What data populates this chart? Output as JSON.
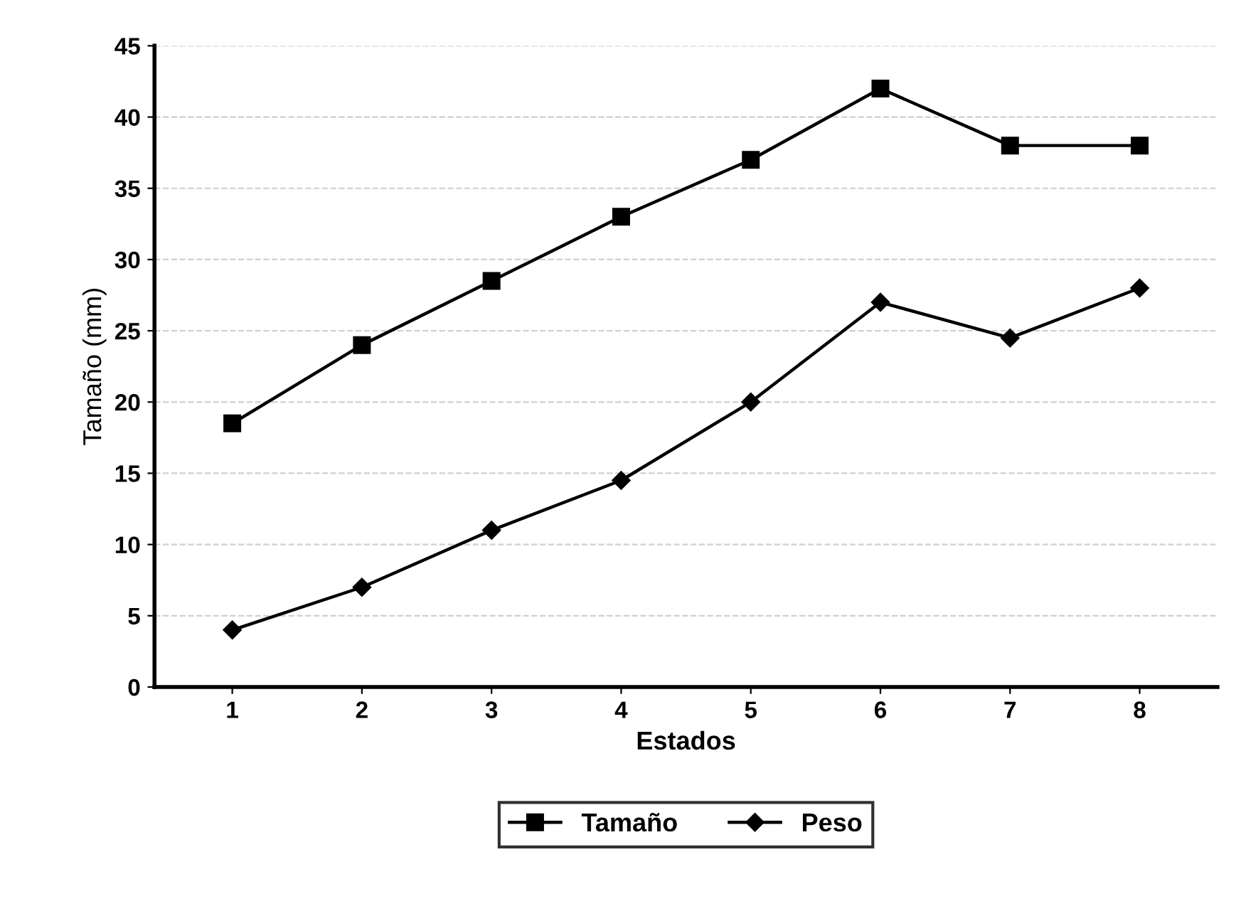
{
  "chart_data": {
    "type": "line",
    "xlabel": "Estados",
    "ylabel": "Tamaño (mm)",
    "categories": [
      "1",
      "2",
      "3",
      "4",
      "5",
      "6",
      "7",
      "8"
    ],
    "series": [
      {
        "name": "Tamaño",
        "color": "#000000",
        "marker": "square",
        "values": [
          18.5,
          24,
          28.5,
          33,
          37,
          42,
          38,
          38
        ]
      },
      {
        "name": "Peso",
        "color": "#000000",
        "marker": "diamond",
        "values": [
          4,
          7,
          11,
          14.5,
          20,
          27,
          24.5,
          28
        ]
      }
    ],
    "ylim": [
      0,
      45
    ],
    "yticks": [
      0,
      5,
      10,
      15,
      20,
      25,
      30,
      35,
      40,
      45
    ],
    "grid": "y",
    "legend": "bottom",
    "line_style": "solid"
  }
}
